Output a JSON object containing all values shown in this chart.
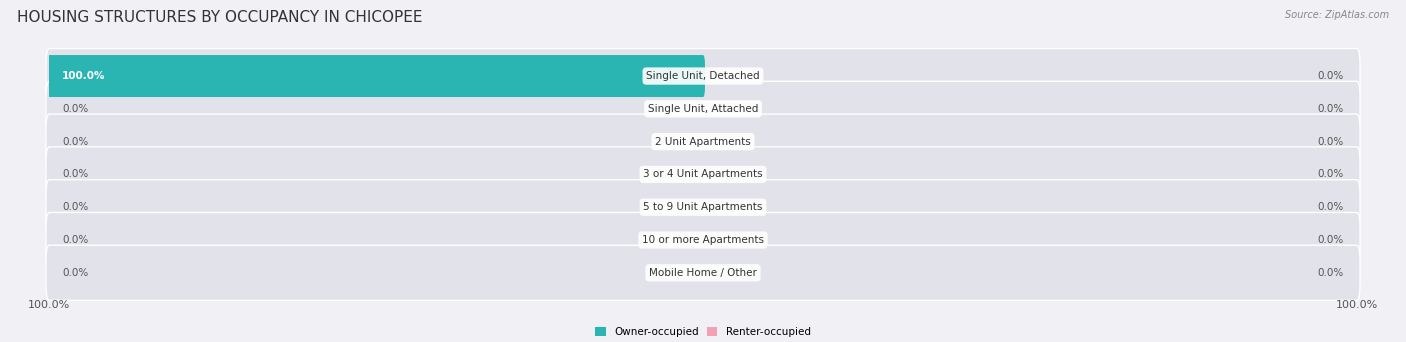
{
  "title": "HOUSING STRUCTURES BY OCCUPANCY IN CHICOPEE",
  "source": "Source: ZipAtlas.com",
  "categories": [
    "Single Unit, Detached",
    "Single Unit, Attached",
    "2 Unit Apartments",
    "3 or 4 Unit Apartments",
    "5 to 9 Unit Apartments",
    "10 or more Apartments",
    "Mobile Home / Other"
  ],
  "owner_values": [
    100.0,
    0.0,
    0.0,
    0.0,
    0.0,
    0.0,
    0.0
  ],
  "renter_values": [
    0.0,
    0.0,
    0.0,
    0.0,
    0.0,
    0.0,
    0.0
  ],
  "owner_color": "#2ab5b2",
  "renter_color": "#f4a0b5",
  "bg_color": "#f0f0f5",
  "bar_bg_color": "#e2e2ea",
  "title_fontsize": 11,
  "label_fontsize": 7.5,
  "pct_fontsize": 7.5,
  "axis_label_fontsize": 8,
  "figsize": [
    14.06,
    3.42
  ],
  "dpi": 100,
  "owner_label": "Owner-occupied",
  "renter_label": "Renter-occupied"
}
